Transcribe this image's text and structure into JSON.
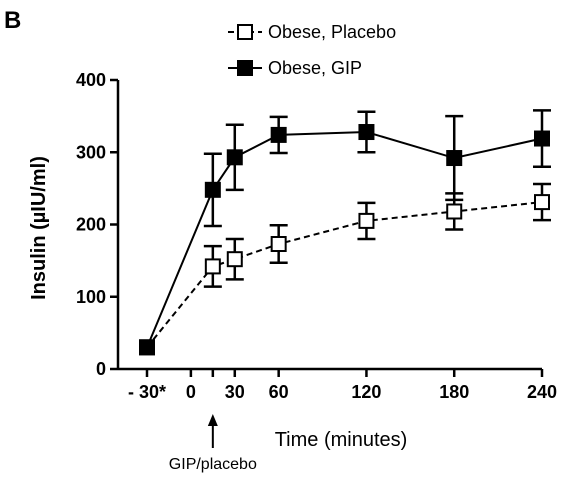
{
  "chart_data": {
    "type": "line",
    "panel_label": "B",
    "xlabel": "Time (minutes)",
    "ylabel": "Insulin (µIU/ml)",
    "ylim": [
      0,
      400
    ],
    "yticks": [
      0,
      100,
      200,
      300,
      400
    ],
    "xticks": [
      {
        "value": -30,
        "label": "- 30*"
      },
      {
        "value": 0,
        "label": "0"
      },
      {
        "value": 30,
        "label": "30"
      },
      {
        "value": 60,
        "label": "60"
      },
      {
        "value": 120,
        "label": "120"
      },
      {
        "value": 180,
        "label": "180"
      },
      {
        "value": 240,
        "label": "240"
      }
    ],
    "x_minor_ticks": [
      15
    ],
    "legend_position": "top",
    "series": [
      {
        "name": "Obese, Placebo",
        "marker": "open-square",
        "line": "dashed",
        "color": "#000000",
        "points": [
          {
            "x": -30,
            "y": 30,
            "err": 0
          },
          {
            "x": 15,
            "y": 142,
            "err": 28
          },
          {
            "x": 30,
            "y": 152,
            "err": 28
          },
          {
            "x": 60,
            "y": 173,
            "err": 26
          },
          {
            "x": 120,
            "y": 205,
            "err": 25
          },
          {
            "x": 180,
            "y": 218,
            "err": 25
          },
          {
            "x": 240,
            "y": 231,
            "err": 25
          }
        ]
      },
      {
        "name": "Obese, GIP",
        "marker": "filled-square",
        "line": "solid",
        "color": "#000000",
        "points": [
          {
            "x": -30,
            "y": 30,
            "err": 0
          },
          {
            "x": 15,
            "y": 248,
            "err": 50
          },
          {
            "x": 30,
            "y": 293,
            "err": 45
          },
          {
            "x": 60,
            "y": 324,
            "err": 25
          },
          {
            "x": 120,
            "y": 328,
            "err": 28
          },
          {
            "x": 180,
            "y": 292,
            "err": 58
          },
          {
            "x": 240,
            "y": 319,
            "err": 39
          }
        ]
      }
    ],
    "annotations": [
      {
        "text": "GIP/placebo",
        "x": 15,
        "arrow": "up"
      }
    ]
  }
}
